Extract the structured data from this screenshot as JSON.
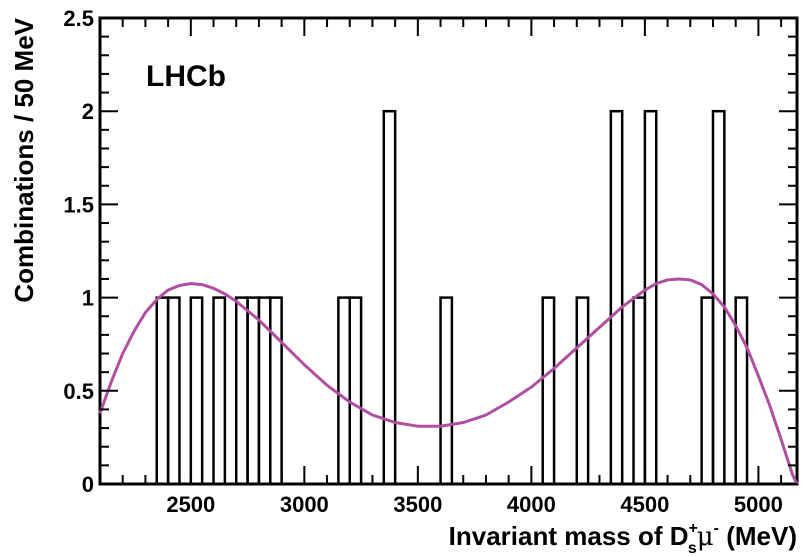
{
  "chart_data": {
    "type": "histogram",
    "experiment_label": "LHCb",
    "xlabel_parts": {
      "main": "Invariant mass of D",
      "sup": "+",
      "sub": "s",
      "particle": "μ",
      "particle_sup": "-",
      "unit": " (MeV)"
    },
    "ylabel": "Combinations / 50 MeV",
    "xlim": [
      2100,
      5170
    ],
    "ylim": [
      0,
      2.5
    ],
    "x_ticks": [
      2500,
      3000,
      3500,
      4000,
      4500,
      5000
    ],
    "x_tick_labels": [
      "2500",
      "3000",
      "3500",
      "4000",
      "4500",
      "5000"
    ],
    "y_ticks": [
      0,
      0.5,
      1,
      1.5,
      2,
      2.5
    ],
    "y_tick_labels": [
      "0",
      "0.5",
      "1",
      "1.5",
      "2",
      "2.5"
    ],
    "bin_width": 50,
    "bins": [
      {
        "x": 2375,
        "count": 1
      },
      {
        "x": 2425,
        "count": 1
      },
      {
        "x": 2525,
        "count": 1
      },
      {
        "x": 2625,
        "count": 1
      },
      {
        "x": 2725,
        "count": 1
      },
      {
        "x": 2775,
        "count": 1
      },
      {
        "x": 2825,
        "count": 1
      },
      {
        "x": 2875,
        "count": 1
      },
      {
        "x": 3175,
        "count": 1
      },
      {
        "x": 3225,
        "count": 1
      },
      {
        "x": 3375,
        "count": 2
      },
      {
        "x": 3625,
        "count": 1
      },
      {
        "x": 4075,
        "count": 1
      },
      {
        "x": 4225,
        "count": 1
      },
      {
        "x": 4375,
        "count": 2
      },
      {
        "x": 4475,
        "count": 1
      },
      {
        "x": 4525,
        "count": 2
      },
      {
        "x": 4775,
        "count": 1
      },
      {
        "x": 4825,
        "count": 2
      },
      {
        "x": 4925,
        "count": 1
      }
    ],
    "fit_curve": {
      "color": "#b04fa0",
      "x": [
        2100,
        2150,
        2200,
        2250,
        2300,
        2350,
        2400,
        2450,
        2500,
        2550,
        2600,
        2650,
        2700,
        2800,
        2900,
        3000,
        3100,
        3200,
        3300,
        3400,
        3500,
        3600,
        3700,
        3800,
        3900,
        4000,
        4100,
        4200,
        4300,
        4400,
        4500,
        4550,
        4600,
        4650,
        4700,
        4750,
        4800,
        4850,
        4900,
        4950,
        5000,
        5050,
        5100,
        5150,
        5170
      ],
      "y": [
        0.38,
        0.55,
        0.7,
        0.82,
        0.92,
        0.99,
        1.04,
        1.065,
        1.075,
        1.07,
        1.05,
        1.02,
        0.98,
        0.88,
        0.76,
        0.64,
        0.53,
        0.44,
        0.37,
        0.33,
        0.31,
        0.31,
        0.33,
        0.37,
        0.44,
        0.52,
        0.62,
        0.73,
        0.84,
        0.95,
        1.04,
        1.075,
        1.095,
        1.1,
        1.095,
        1.07,
        1.02,
        0.95,
        0.85,
        0.73,
        0.58,
        0.42,
        0.24,
        0.05,
        0.0
      ]
    }
  }
}
